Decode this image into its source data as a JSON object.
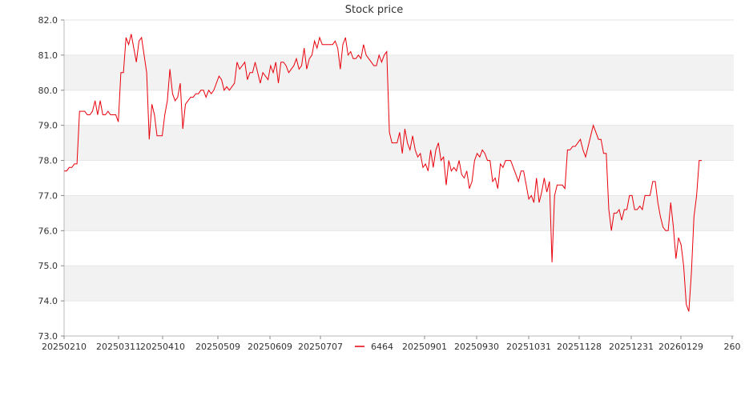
{
  "chart_data": {
    "type": "line",
    "title": "Stock price",
    "xlabel": "",
    "ylabel": "",
    "ylim": [
      73.0,
      82.0
    ],
    "y_ticks": [
      "73.0",
      "74.0",
      "75.0",
      "76.0",
      "77.0",
      "78.0",
      "79.0",
      "80.0",
      "81.0",
      "82.0"
    ],
    "x_ticks": [
      "20250210",
      "20250311",
      "20250410",
      "20250509",
      "20250609",
      "20250707",
      "20250901",
      "20250930",
      "20251031",
      "20251128",
      "20251231",
      "20260129",
      "260"
    ],
    "grid": "horizontal bands",
    "legend_position": "bottom",
    "line_color": "#e8000b",
    "series": [
      {
        "name": "6464",
        "values": [
          77.7,
          77.7,
          77.8,
          77.8,
          77.9,
          77.9,
          79.4,
          79.4,
          79.4,
          79.3,
          79.3,
          79.4,
          79.7,
          79.3,
          79.7,
          79.3,
          79.3,
          79.4,
          79.3,
          79.3,
          79.3,
          79.1,
          80.5,
          80.5,
          81.5,
          81.3,
          81.6,
          81.2,
          80.8,
          81.4,
          81.5,
          81.0,
          80.5,
          78.6,
          79.6,
          79.3,
          78.7,
          78.7,
          78.7,
          79.3,
          79.7,
          80.6,
          79.9,
          79.7,
          79.8,
          80.2,
          78.9,
          79.6,
          79.7,
          79.8,
          79.8,
          79.9,
          79.9,
          80.0,
          80.0,
          79.8,
          80.0,
          79.9,
          80.0,
          80.2,
          80.4,
          80.3,
          80.0,
          80.1,
          80.0,
          80.1,
          80.2,
          80.8,
          80.6,
          80.7,
          80.8,
          80.3,
          80.5,
          80.5,
          80.8,
          80.5,
          80.2,
          80.5,
          80.4,
          80.3,
          80.7,
          80.5,
          80.8,
          80.2,
          80.8,
          80.8,
          80.7,
          80.5,
          80.6,
          80.7,
          80.9,
          80.6,
          80.7,
          81.2,
          80.6,
          80.9,
          81.0,
          81.4,
          81.2,
          81.5,
          81.3,
          81.3,
          81.3,
          81.3,
          81.3,
          81.4,
          81.2,
          80.6,
          81.3,
          81.5,
          81.0,
          81.1,
          80.9,
          80.9,
          81.0,
          80.9,
          81.3,
          81.0,
          80.9,
          80.8,
          80.7,
          80.7,
          81.0,
          80.8,
          81.0,
          81.1,
          78.8,
          78.5,
          78.5,
          78.5,
          78.8,
          78.2,
          78.9,
          78.5,
          78.3,
          78.7,
          78.3,
          78.1,
          78.2,
          77.8,
          77.9,
          77.7,
          78.3,
          77.8,
          78.3,
          78.5,
          78.0,
          78.1,
          77.3,
          78.0,
          77.7,
          77.8,
          77.7,
          78.0,
          77.6,
          77.5,
          77.7,
          77.2,
          77.4,
          78.0,
          78.2,
          78.1,
          78.3,
          78.2,
          78.0,
          78.0,
          77.4,
          77.5,
          77.2,
          77.9,
          77.8,
          78.0,
          78.0,
          78.0,
          77.8,
          77.6,
          77.4,
          77.7,
          77.7,
          77.3,
          76.9,
          77.0,
          76.8,
          77.5,
          76.8,
          77.1,
          77.5,
          77.1,
          77.4,
          75.1,
          77.0,
          77.3,
          77.3,
          77.3,
          77.2,
          78.3,
          78.3,
          78.4,
          78.4,
          78.5,
          78.6,
          78.3,
          78.1,
          78.4,
          78.7,
          79.0,
          78.8,
          78.6,
          78.6,
          78.2,
          78.2,
          76.6,
          76.0,
          76.5,
          76.5,
          76.6,
          76.3,
          76.6,
          76.6,
          77.0,
          77.0,
          76.6,
          76.6,
          76.7,
          76.6,
          77.0,
          77.0,
          77.0,
          77.4,
          77.4,
          76.8,
          76.4,
          76.1,
          76.0,
          76.0,
          76.8,
          76.1,
          75.2,
          75.8,
          75.6,
          75.0,
          73.9,
          73.7,
          74.8,
          76.4,
          77.0,
          78.0,
          78.0
        ]
      }
    ]
  }
}
